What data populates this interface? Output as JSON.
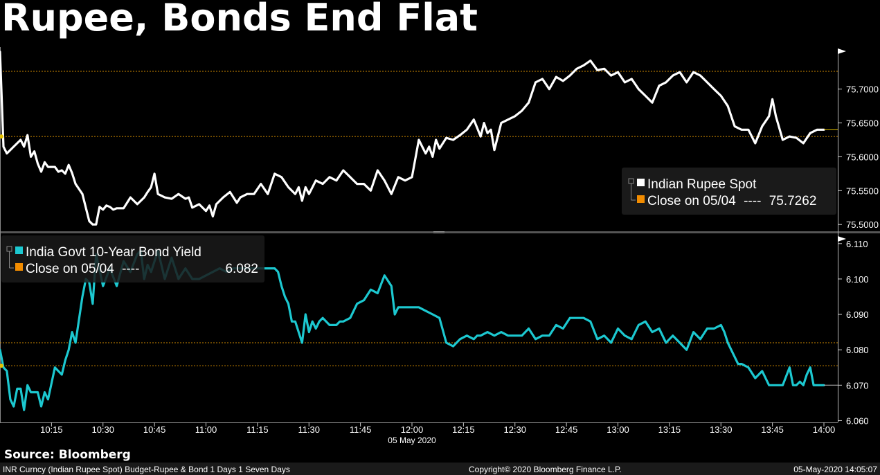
{
  "title": "Rupee, Bonds End Flat",
  "source": "Source: Bloomberg",
  "footer": {
    "left": "INR Curncy (Indian Rupee Spot) Budget-Rupee & Bond 1 Days 1 Seven Days",
    "center": "Copyright© 2020 Bloomberg Finance L.P.",
    "right": "05-May-2020 14:05:07"
  },
  "colors": {
    "rupee": "#ffffff",
    "bond": "#1cc8d0",
    "close_marker": "#f28c00",
    "ref_line": "#d08a00"
  },
  "chart_data": [
    {
      "type": "line",
      "panel": "top",
      "x_tick_labels": [
        "10:15",
        "10:30",
        "10:45",
        "11:00",
        "11:15",
        "11:30",
        "11:45",
        "12:00",
        "12:15",
        "12:30",
        "12:45",
        "13:00",
        "13:15",
        "13:30",
        "13:45",
        "14:00"
      ],
      "x_date_label": "05 May 2020",
      "x_range": [
        "10:00",
        "14:00"
      ],
      "y_tick_labels": [
        "75.7000",
        "75.6500",
        "75.6000",
        "75.5500",
        "75.5000"
      ],
      "ylim": [
        75.49,
        75.76
      ],
      "legend": {
        "series_name": "Indian Rupee Spot",
        "close_label": "Close on 05/04",
        "close_dashes": "----",
        "close_value": "75.7262",
        "placement": "bottom-right"
      },
      "reference_lines": [
        75.7262,
        75.63
      ],
      "series": [
        {
          "name": "Indian Rupee Spot",
          "x": [
            "10:00",
            "10:01",
            "10:02",
            "10:04",
            "10:06",
            "10:07",
            "10:08",
            "10:09",
            "10:10",
            "10:11",
            "10:12",
            "10:13",
            "10:14",
            "10:16",
            "10:17",
            "10:18",
            "10:19",
            "10:20",
            "10:21",
            "10:22",
            "10:24",
            "10:26",
            "10:27",
            "10:28",
            "10:29",
            "10:30",
            "10:31",
            "10:32",
            "10:33",
            "10:34",
            "10:36",
            "10:38",
            "10:40",
            "10:42",
            "10:43",
            "10:44",
            "10:45",
            "10:46",
            "10:48",
            "10:50",
            "10:52",
            "10:54",
            "10:55",
            "10:56",
            "10:58",
            "11:00",
            "11:01",
            "11:02",
            "11:03",
            "11:05",
            "11:07",
            "11:09",
            "11:10",
            "11:12",
            "11:14",
            "11:16",
            "11:18",
            "11:20",
            "11:22",
            "11:24",
            "11:26",
            "11:27",
            "11:28",
            "11:29",
            "11:30",
            "11:32",
            "11:34",
            "11:36",
            "11:38",
            "11:40",
            "11:42",
            "11:44",
            "11:46",
            "11:48",
            "11:50",
            "11:52",
            "11:54",
            "11:56",
            "11:58",
            "12:00",
            "12:02",
            "12:04",
            "12:05",
            "12:06",
            "12:07",
            "12:08",
            "12:10",
            "12:12",
            "12:14",
            "12:16",
            "12:18",
            "12:20",
            "12:21",
            "12:22",
            "12:23",
            "12:24",
            "12:26",
            "12:28",
            "12:30",
            "12:32",
            "12:34",
            "12:36",
            "12:38",
            "12:40",
            "12:42",
            "12:44",
            "12:46",
            "12:48",
            "12:50",
            "12:52",
            "12:54",
            "12:56",
            "12:58",
            "13:00",
            "13:02",
            "13:04",
            "13:06",
            "13:08",
            "13:10",
            "13:12",
            "13:14",
            "13:16",
            "13:18",
            "13:20",
            "13:22",
            "13:24",
            "13:26",
            "13:28",
            "13:30",
            "13:32",
            "13:34",
            "13:36",
            "13:38",
            "13:40",
            "13:42",
            "13:44",
            "13:45",
            "13:46",
            "13:48",
            "13:50",
            "13:52",
            "13:54",
            "13:56",
            "13:58",
            "14:00"
          ],
          "values": [
            75.755,
            75.615,
            75.605,
            75.615,
            75.625,
            75.615,
            75.632,
            75.6,
            75.608,
            75.59,
            75.578,
            75.592,
            75.585,
            75.585,
            75.578,
            75.58,
            75.575,
            75.588,
            75.576,
            75.56,
            75.545,
            75.505,
            75.5,
            75.5,
            75.526,
            75.522,
            75.528,
            75.526,
            75.522,
            75.524,
            75.524,
            75.54,
            75.53,
            75.54,
            75.548,
            75.555,
            75.575,
            75.545,
            75.54,
            75.538,
            75.545,
            75.538,
            75.54,
            75.525,
            75.53,
            75.52,
            75.528,
            75.512,
            75.53,
            75.54,
            75.548,
            75.532,
            75.54,
            75.545,
            75.545,
            75.56,
            75.545,
            75.575,
            75.57,
            75.555,
            75.545,
            75.555,
            75.535,
            75.555,
            75.545,
            75.565,
            75.56,
            75.57,
            75.565,
            75.58,
            75.57,
            75.56,
            75.56,
            75.55,
            75.58,
            75.565,
            75.545,
            75.57,
            75.565,
            75.57,
            75.625,
            75.605,
            75.615,
            75.6,
            75.625,
            75.612,
            75.628,
            75.625,
            75.632,
            75.64,
            75.655,
            75.63,
            75.65,
            75.635,
            75.64,
            75.61,
            75.65,
            75.655,
            75.66,
            75.668,
            75.68,
            75.71,
            75.715,
            75.7,
            75.718,
            75.712,
            75.72,
            75.73,
            75.735,
            75.742,
            75.728,
            75.73,
            75.72,
            75.725,
            75.71,
            75.715,
            75.7,
            75.69,
            75.68,
            75.705,
            75.71,
            75.72,
            75.725,
            75.71,
            75.725,
            75.72,
            75.71,
            75.7,
            75.69,
            75.675,
            75.645,
            75.64,
            75.64,
            75.62,
            75.645,
            75.66,
            75.685,
            75.66,
            75.625,
            75.63,
            75.628,
            75.62,
            75.635,
            75.64,
            75.64
          ]
        }
      ]
    },
    {
      "type": "line",
      "panel": "bottom",
      "x_range": [
        "10:00",
        "14:00"
      ],
      "y_tick_labels": [
        "6.110",
        "6.100",
        "6.090",
        "6.080",
        "6.070",
        "6.060"
      ],
      "ylim": [
        6.0595,
        6.1125
      ],
      "legend": {
        "series_name": "India Govt 10-Year Bond Yield",
        "close_label": "Close on 05/04",
        "close_dashes": "----",
        "close_value": "6.082",
        "placement": "top-left"
      },
      "reference_lines": [
        6.082,
        6.0755
      ],
      "series": [
        {
          "name": "India Govt 10-Year Bond Yield",
          "x": [
            "10:00",
            "10:01",
            "10:02",
            "10:03",
            "10:04",
            "10:05",
            "10:06",
            "10:07",
            "10:08",
            "10:09",
            "10:10",
            "10:11",
            "10:12",
            "10:13",
            "10:14",
            "10:16",
            "10:18",
            "10:19",
            "10:20",
            "10:21",
            "10:22",
            "10:24",
            "10:25",
            "10:26",
            "10:27",
            "10:28",
            "10:30",
            "10:32",
            "10:34",
            "10:36",
            "10:38",
            "10:40",
            "10:41",
            "10:42",
            "10:43",
            "10:44",
            "10:46",
            "10:48",
            "10:50",
            "10:52",
            "10:54",
            "10:56",
            "10:58",
            "11:00",
            "11:02",
            "11:04",
            "11:06",
            "11:08",
            "11:10",
            "11:12",
            "11:14",
            "11:16",
            "11:18",
            "11:20",
            "11:21",
            "11:22",
            "11:23",
            "11:24",
            "11:25",
            "11:26",
            "11:28",
            "11:29",
            "11:30",
            "11:31",
            "11:32",
            "11:33",
            "11:34",
            "11:36",
            "11:38",
            "11:39",
            "11:40",
            "11:42",
            "11:44",
            "11:46",
            "11:48",
            "11:50",
            "11:52",
            "11:54",
            "11:55",
            "11:56",
            "11:58",
            "11:59",
            "12:00",
            "12:01",
            "12:02",
            "12:04",
            "12:06",
            "12:08",
            "12:10",
            "12:12",
            "12:14",
            "12:16",
            "12:18",
            "12:19",
            "12:20",
            "12:22",
            "12:24",
            "12:26",
            "12:28",
            "12:30",
            "12:32",
            "12:34",
            "12:36",
            "12:38",
            "12:40",
            "12:42",
            "12:44",
            "12:46",
            "12:48",
            "12:50",
            "12:52",
            "12:54",
            "12:56",
            "12:58",
            "13:00",
            "13:02",
            "13:04",
            "13:06",
            "13:08",
            "13:10",
            "13:12",
            "13:14",
            "13:16",
            "13:18",
            "13:20",
            "13:22",
            "13:24",
            "13:26",
            "13:28",
            "13:30",
            "13:31",
            "13:32",
            "13:33",
            "13:34",
            "13:35",
            "13:36",
            "13:38",
            "13:40",
            "13:42",
            "13:44",
            "13:46",
            "13:48",
            "13:50",
            "13:51",
            "13:52",
            "13:53",
            "13:54",
            "13:55",
            "13:56",
            "13:57",
            "13:58",
            "13:59",
            "14:00"
          ],
          "values": [
            6.08,
            6.075,
            6.074,
            6.066,
            6.064,
            6.069,
            6.069,
            6.063,
            6.07,
            6.068,
            6.068,
            6.068,
            6.064,
            6.068,
            6.066,
            6.075,
            6.073,
            6.077,
            6.08,
            6.085,
            6.082,
            6.095,
            6.1,
            6.099,
            6.093,
            6.107,
            6.098,
            6.103,
            6.098,
            6.105,
            6.102,
            6.107,
            6.108,
            6.1,
            6.104,
            6.102,
            6.108,
            6.1,
            6.106,
            6.1,
            6.103,
            6.1,
            6.1,
            6.101,
            6.102,
            6.103,
            6.102,
            6.103,
            6.103,
            6.103,
            6.103,
            6.103,
            6.103,
            6.103,
            6.102,
            6.098,
            6.095,
            6.093,
            6.088,
            6.088,
            6.082,
            6.09,
            6.085,
            6.088,
            6.086,
            6.088,
            6.089,
            6.087,
            6.087,
            6.088,
            6.088,
            6.089,
            6.093,
            6.094,
            6.097,
            6.096,
            6.101,
            6.098,
            6.09,
            6.092,
            6.092,
            6.092,
            6.092,
            6.092,
            6.092,
            6.091,
            6.09,
            6.089,
            6.082,
            6.081,
            6.083,
            6.084,
            6.083,
            6.084,
            6.084,
            6.085,
            6.084,
            6.085,
            6.084,
            6.084,
            6.084,
            6.086,
            6.083,
            6.084,
            6.084,
            6.087,
            6.086,
            6.089,
            6.089,
            6.089,
            6.088,
            6.083,
            6.084,
            6.082,
            6.086,
            6.084,
            6.083,
            6.087,
            6.088,
            6.085,
            6.086,
            6.082,
            6.084,
            6.082,
            6.08,
            6.085,
            6.083,
            6.086,
            6.086,
            6.087,
            6.085,
            6.082,
            6.08,
            6.078,
            6.076,
            6.076,
            6.075,
            6.072,
            6.074,
            6.07,
            6.07,
            6.07,
            6.075,
            6.07,
            6.07,
            6.071,
            6.07,
            6.073,
            6.075,
            6.07,
            6.07,
            6.07,
            6.07
          ]
        }
      ]
    }
  ]
}
